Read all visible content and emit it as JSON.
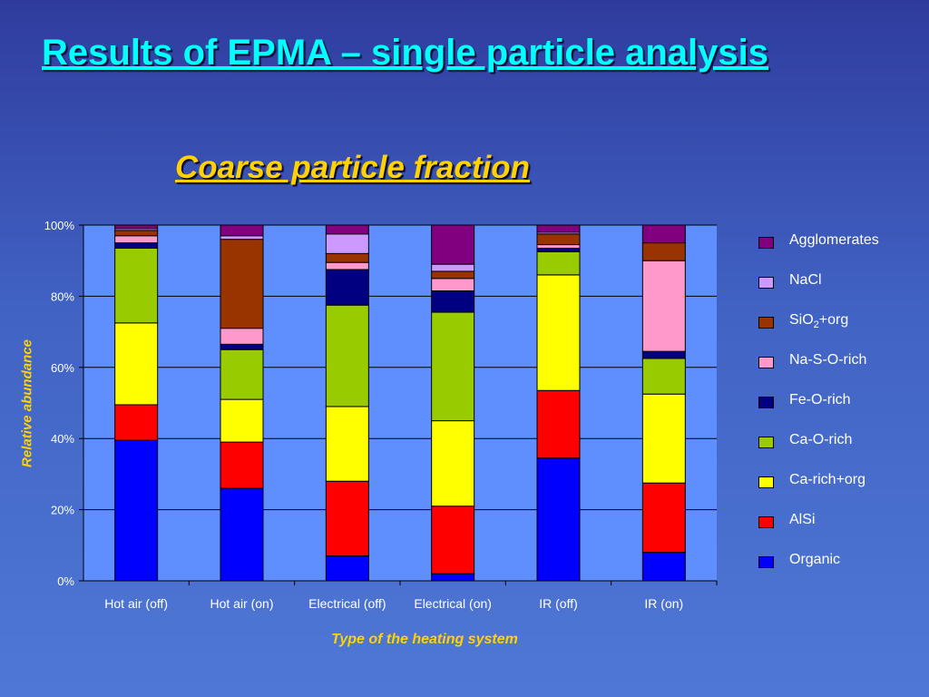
{
  "slide": {
    "title": "Results of EPMA – single particle analysis"
  },
  "chart_data": {
    "type": "bar",
    "stacked": true,
    "title": "Coarse particle fraction",
    "xlabel": "Type of the heating system",
    "ylabel": "Relative abundance",
    "ylim": [
      0,
      100
    ],
    "yticks": [
      "0%",
      "20%",
      "40%",
      "60%",
      "80%",
      "100%"
    ],
    "categories": [
      "Hot air (off)",
      "Hot air (on)",
      "Electrical (off)",
      "Electrical (on)",
      "IR (off)",
      "IR (on)"
    ],
    "grid": true,
    "legend_position": "right",
    "series": [
      {
        "name": "Organic",
        "color": "#0000ff",
        "values": [
          39.5,
          26,
          7,
          2,
          34.5,
          8
        ]
      },
      {
        "name": "AlSi",
        "color": "#ff0000",
        "values": [
          10,
          13,
          21,
          19,
          19,
          19.5
        ]
      },
      {
        "name": "Ca-rich+org",
        "color": "#ffff00",
        "values": [
          23,
          12,
          21,
          24,
          32.5,
          25
        ]
      },
      {
        "name": "Ca-O-rich",
        "color": "#99cc00",
        "values": [
          21,
          14,
          28.5,
          30.5,
          6.5,
          10
        ]
      },
      {
        "name": "Fe-O-rich",
        "color": "#000080",
        "values": [
          1.5,
          1.5,
          10,
          6,
          1,
          2
        ]
      },
      {
        "name": "Na-S-O-rich",
        "color": "#ff99cc",
        "values": [
          2,
          4.5,
          2,
          3.5,
          1,
          25.5
        ]
      },
      {
        "name": "SiO2+org",
        "color": "#993300",
        "values": [
          1.5,
          25,
          2.5,
          2,
          3,
          5
        ]
      },
      {
        "name": "NaCl",
        "color": "#cc99ff",
        "values": [
          0.5,
          1,
          5.5,
          2,
          0.5,
          0
        ]
      },
      {
        "name": "Agglomerates",
        "color": "#800080",
        "values": [
          1,
          3,
          2.5,
          11,
          2,
          5
        ]
      }
    ],
    "legend_order": [
      "Agglomerates",
      "NaCl",
      "SiO2+org",
      "Na-S-O-rich",
      "Fe-O-rich",
      "Ca-O-rich",
      "Ca-rich+org",
      "AlSi",
      "Organic"
    ],
    "plot_background": "#5f8fff"
  }
}
